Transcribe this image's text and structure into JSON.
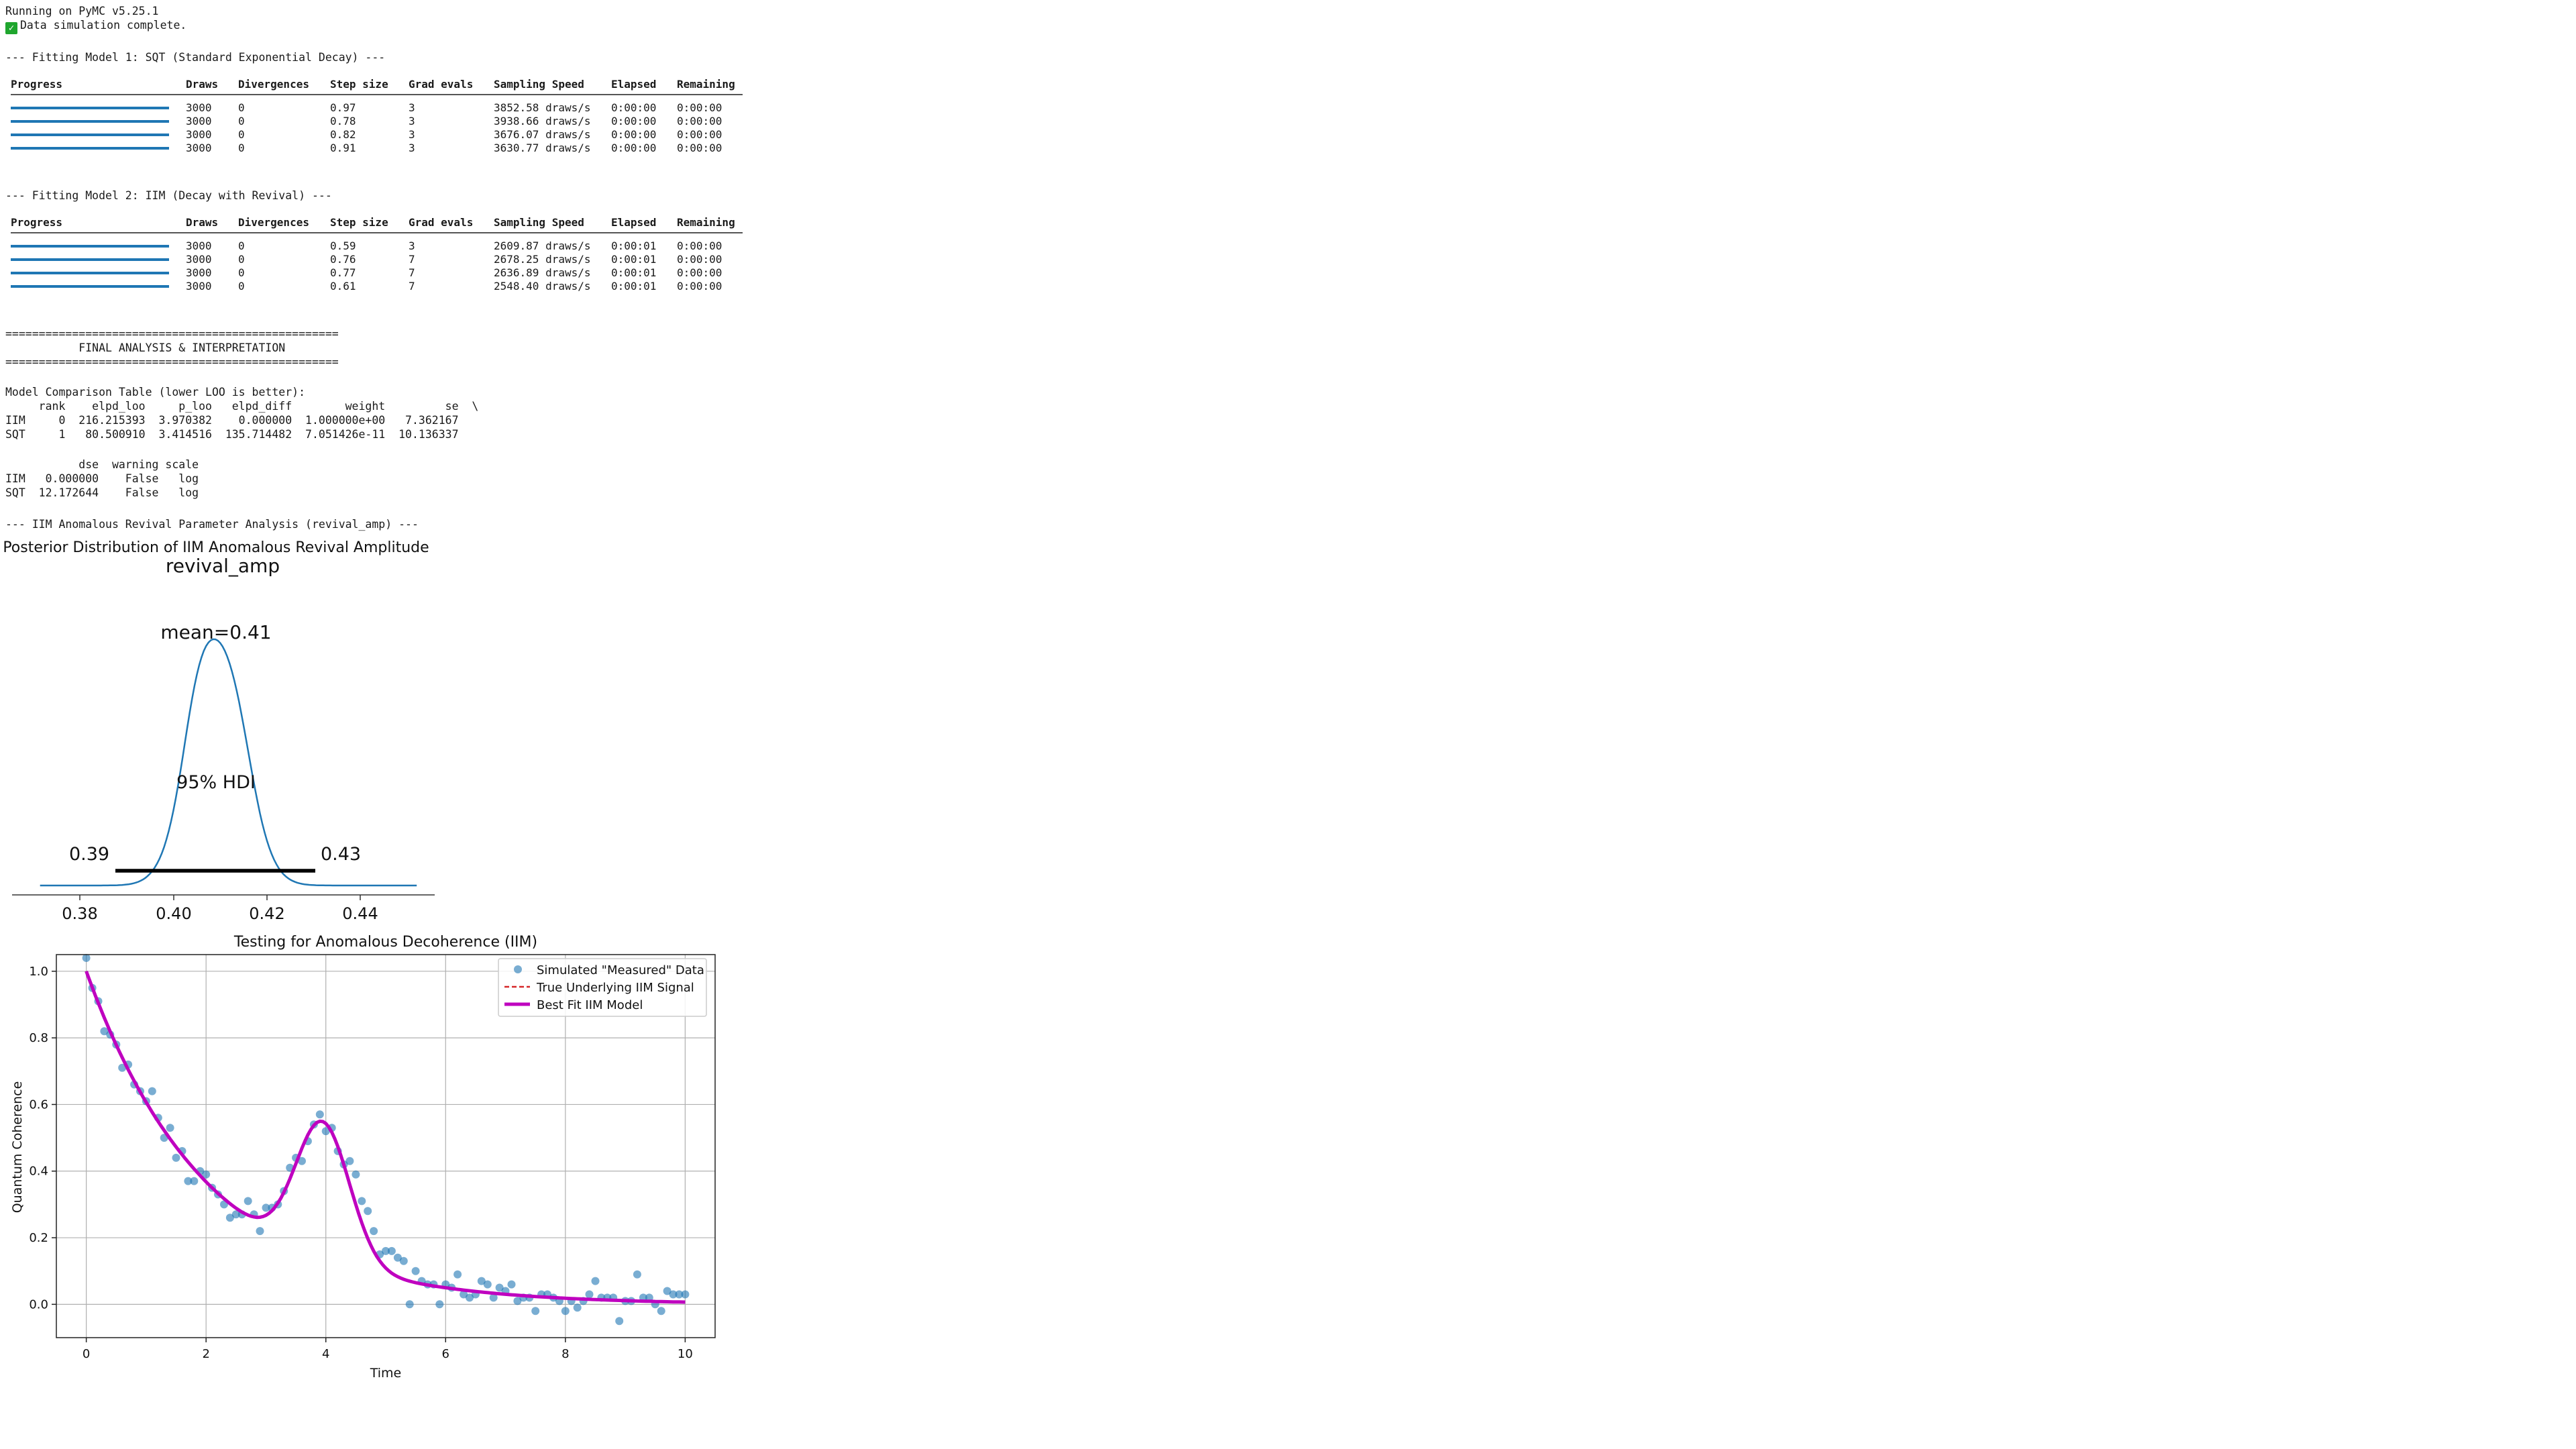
{
  "header": {
    "running_line": "Running on PyMC v5.25.1",
    "sim_line": "Data simulation complete."
  },
  "model1": {
    "title": "--- Fitting Model 1: SQT (Standard Exponential Decay) ---",
    "columns": [
      "Progress",
      "Draws",
      "Divergences",
      "Step size",
      "Grad evals",
      "Sampling Speed",
      "Elapsed",
      "Remaining"
    ],
    "rows": [
      {
        "progress": 1.0,
        "draws": "3000",
        "div": "0",
        "step": "0.97",
        "grad": "3",
        "speed": "3852.58 draws/s",
        "elapsed": "0:00:00",
        "remaining": "0:00:00"
      },
      {
        "progress": 1.0,
        "draws": "3000",
        "div": "0",
        "step": "0.78",
        "grad": "3",
        "speed": "3938.66 draws/s",
        "elapsed": "0:00:00",
        "remaining": "0:00:00"
      },
      {
        "progress": 1.0,
        "draws": "3000",
        "div": "0",
        "step": "0.82",
        "grad": "3",
        "speed": "3676.07 draws/s",
        "elapsed": "0:00:00",
        "remaining": "0:00:00"
      },
      {
        "progress": 1.0,
        "draws": "3000",
        "div": "0",
        "step": "0.91",
        "grad": "3",
        "speed": "3630.77 draws/s",
        "elapsed": "0:00:00",
        "remaining": "0:00:00"
      }
    ]
  },
  "model2": {
    "title": "--- Fitting Model 2: IIM (Decay with Revival) ---",
    "columns": [
      "Progress",
      "Draws",
      "Divergences",
      "Step size",
      "Grad evals",
      "Sampling Speed",
      "Elapsed",
      "Remaining"
    ],
    "rows": [
      {
        "progress": 1.0,
        "draws": "3000",
        "div": "0",
        "step": "0.59",
        "grad": "3",
        "speed": "2609.87 draws/s",
        "elapsed": "0:00:01",
        "remaining": "0:00:00"
      },
      {
        "progress": 1.0,
        "draws": "3000",
        "div": "0",
        "step": "0.76",
        "grad": "7",
        "speed": "2678.25 draws/s",
        "elapsed": "0:00:01",
        "remaining": "0:00:00"
      },
      {
        "progress": 1.0,
        "draws": "3000",
        "div": "0",
        "step": "0.77",
        "grad": "7",
        "speed": "2636.89 draws/s",
        "elapsed": "0:00:01",
        "remaining": "0:00:00"
      },
      {
        "progress": 1.0,
        "draws": "3000",
        "div": "0",
        "step": "0.61",
        "grad": "7",
        "speed": "2548.40 draws/s",
        "elapsed": "0:00:01",
        "remaining": "0:00:00"
      }
    ]
  },
  "final": {
    "rule": "==================================================",
    "heading": "           FINAL ANALYSIS & INTERPRETATION",
    "comparison_title": "Model Comparison Table (lower LOO is better):",
    "table1_header": "     rank    elpd_loo     p_loo   elpd_diff        weight         se  \\",
    "table1_rows": [
      "IIM     0  216.215393  3.970382    0.000000  1.000000e+00   7.362167",
      "SQT     1   80.500910  3.414516  135.714482  7.051426e-11  10.136337"
    ],
    "table2_header": "           dse  warning scale",
    "table2_rows": [
      "IIM   0.000000    False   log",
      "SQT  12.172644    False   log"
    ],
    "param_title": "--- IIM Anomalous Revival Parameter Analysis (revival_amp) ---"
  },
  "posterior_plot": {
    "suptitle": "Posterior Distribution of IIM Anomalous Revival Amplitude",
    "title": "revival_amp",
    "mean_label": "mean=0.41",
    "hdi_label": "95% HDI",
    "hdi_low_label": "0.39",
    "hdi_high_label": "0.43",
    "xticks": [
      "0.38",
      "0.40",
      "0.42",
      "0.44"
    ],
    "line_color": "#1f77b4"
  },
  "chart_data": {
    "type": "line",
    "title": "Testing for Anomalous Decoherence (IIM)",
    "xlabel": "Time",
    "ylabel": "Quantum Coherence",
    "xlim": [
      -0.5,
      10.5
    ],
    "ylim": [
      -0.1,
      1.05
    ],
    "xticks": [
      "0",
      "2",
      "4",
      "6",
      "8",
      "10"
    ],
    "yticks": [
      "0.0",
      "0.2",
      "0.4",
      "0.6",
      "0.8",
      "1.0"
    ],
    "grid": true,
    "legend_position": "top-right",
    "legend": [
      "Simulated \"Measured\" Data",
      "True Underlying IIM Signal",
      "Best Fit IIM Model"
    ],
    "colors": {
      "data": "#1f77b4",
      "true": "#d62728",
      "fit": "#bf00bf"
    },
    "scatter": [
      [
        0.0,
        1.04
      ],
      [
        0.1,
        0.95
      ],
      [
        0.2,
        0.91
      ],
      [
        0.3,
        0.82
      ],
      [
        0.4,
        0.81
      ],
      [
        0.5,
        0.78
      ],
      [
        0.6,
        0.71
      ],
      [
        0.7,
        0.72
      ],
      [
        0.8,
        0.66
      ],
      [
        0.9,
        0.64
      ],
      [
        1.0,
        0.61
      ],
      [
        1.1,
        0.64
      ],
      [
        1.2,
        0.56
      ],
      [
        1.3,
        0.5
      ],
      [
        1.4,
        0.53
      ],
      [
        1.5,
        0.44
      ],
      [
        1.6,
        0.46
      ],
      [
        1.7,
        0.37
      ],
      [
        1.8,
        0.37
      ],
      [
        1.9,
        0.4
      ],
      [
        2.0,
        0.39
      ],
      [
        2.1,
        0.35
      ],
      [
        2.2,
        0.33
      ],
      [
        2.3,
        0.3
      ],
      [
        2.4,
        0.26
      ],
      [
        2.5,
        0.27
      ],
      [
        2.6,
        0.27
      ],
      [
        2.7,
        0.31
      ],
      [
        2.8,
        0.27
      ],
      [
        2.9,
        0.22
      ],
      [
        3.0,
        0.29
      ],
      [
        3.1,
        0.29
      ],
      [
        3.2,
        0.3
      ],
      [
        3.3,
        0.34
      ],
      [
        3.4,
        0.41
      ],
      [
        3.5,
        0.44
      ],
      [
        3.6,
        0.43
      ],
      [
        3.7,
        0.49
      ],
      [
        3.8,
        0.54
      ],
      [
        3.9,
        0.57
      ],
      [
        4.0,
        0.52
      ],
      [
        4.1,
        0.53
      ],
      [
        4.2,
        0.46
      ],
      [
        4.3,
        0.42
      ],
      [
        4.4,
        0.43
      ],
      [
        4.5,
        0.39
      ],
      [
        4.6,
        0.31
      ],
      [
        4.7,
        0.28
      ],
      [
        4.8,
        0.22
      ],
      [
        4.9,
        0.15
      ],
      [
        5.0,
        0.16
      ],
      [
        5.1,
        0.16
      ],
      [
        5.2,
        0.14
      ],
      [
        5.3,
        0.13
      ],
      [
        5.4,
        0.0
      ],
      [
        5.5,
        0.1
      ],
      [
        5.6,
        0.07
      ],
      [
        5.7,
        0.06
      ],
      [
        5.8,
        0.06
      ],
      [
        5.9,
        0.0
      ],
      [
        6.0,
        0.06
      ],
      [
        6.1,
        0.05
      ],
      [
        6.2,
        0.09
      ],
      [
        6.3,
        0.03
      ],
      [
        6.4,
        0.02
      ],
      [
        6.5,
        0.03
      ],
      [
        6.6,
        0.07
      ],
      [
        6.7,
        0.06
      ],
      [
        6.8,
        0.02
      ],
      [
        6.9,
        0.05
      ],
      [
        7.0,
        0.04
      ],
      [
        7.1,
        0.06
      ],
      [
        7.2,
        0.01
      ],
      [
        7.3,
        0.02
      ],
      [
        7.4,
        0.02
      ],
      [
        7.5,
        -0.02
      ],
      [
        7.6,
        0.03
      ],
      [
        7.7,
        0.03
      ],
      [
        7.8,
        0.02
      ],
      [
        7.9,
        0.01
      ],
      [
        8.0,
        -0.02
      ],
      [
        8.1,
        0.01
      ],
      [
        8.2,
        -0.01
      ],
      [
        8.3,
        0.01
      ],
      [
        8.4,
        0.03
      ],
      [
        8.5,
        0.07
      ],
      [
        8.6,
        0.02
      ],
      [
        8.7,
        0.02
      ],
      [
        8.8,
        0.02
      ],
      [
        8.9,
        -0.05
      ],
      [
        9.0,
        0.01
      ],
      [
        9.1,
        0.01
      ],
      [
        9.2,
        0.09
      ],
      [
        9.3,
        0.02
      ],
      [
        9.4,
        0.02
      ],
      [
        9.5,
        0.0
      ],
      [
        9.6,
        -0.02
      ],
      [
        9.7,
        0.04
      ],
      [
        9.8,
        0.03
      ],
      [
        9.9,
        0.03
      ],
      [
        10.0,
        0.03
      ]
    ],
    "fit_model": {
      "base_decay_rate": 0.5,
      "revival_amp": 0.41,
      "revival_center": 3.95,
      "revival_width": 0.45,
      "x_start": 0,
      "x_end": 10
    }
  }
}
